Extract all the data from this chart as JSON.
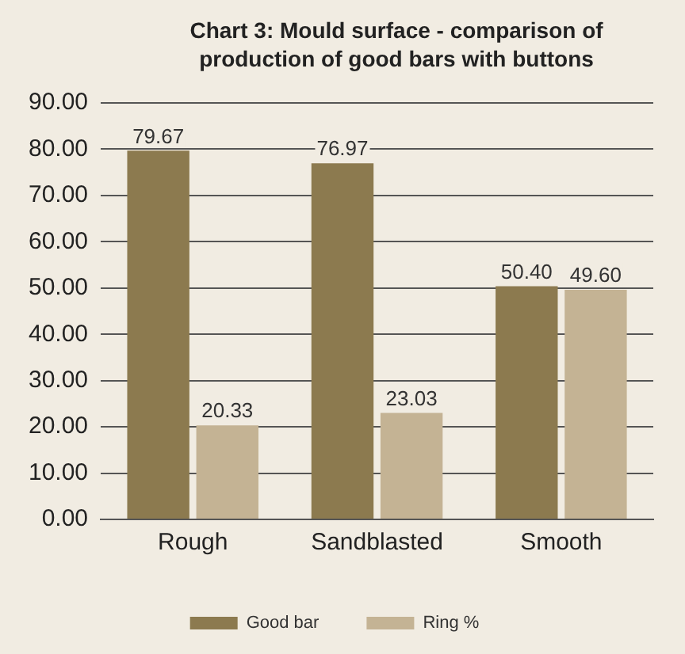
{
  "chart_data": {
    "type": "bar",
    "title": "Chart 3: Mould surface - comparison of production of good bars with buttons",
    "categories": [
      "Rough",
      "Sandblasted",
      "Smooth"
    ],
    "series": [
      {
        "name": "Good bar",
        "color": "#8c7a4f",
        "values": [
          79.67,
          76.97,
          50.4
        ],
        "value_labels": [
          "79.67",
          "76.97",
          "50.40"
        ]
      },
      {
        "name": "Ring %",
        "color": "#c4b394",
        "values": [
          20.33,
          23.03,
          49.6
        ],
        "value_labels": [
          "20.33",
          "23.03",
          "49.60"
        ]
      }
    ],
    "ylim": [
      0,
      90
    ],
    "yticks": [
      {
        "value": 0,
        "label": "0.00"
      },
      {
        "value": 10,
        "label": "10.00"
      },
      {
        "value": 20,
        "label": "20.00"
      },
      {
        "value": 30,
        "label": "30.00"
      },
      {
        "value": 40,
        "label": "40.00"
      },
      {
        "value": 50,
        "label": "50.00"
      },
      {
        "value": 60,
        "label": "60.00"
      },
      {
        "value": 70,
        "label": "70.00"
      },
      {
        "value": 80,
        "label": "80.00"
      },
      {
        "value": 90,
        "label": "90.00"
      }
    ],
    "grid": "y",
    "legend": "bottom"
  }
}
